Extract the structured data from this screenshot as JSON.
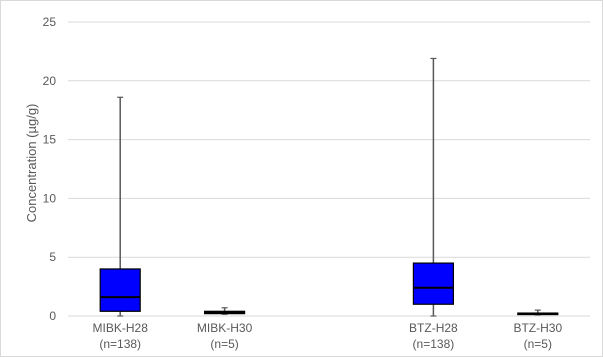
{
  "chart_data": {
    "type": "boxplot",
    "ylabel": "Concentration (µg/g)",
    "ylim": [
      0,
      25
    ],
    "yticks": [
      0,
      5,
      10,
      15,
      20,
      25
    ],
    "grid": true,
    "colors": {
      "box": "#0000ff",
      "whisker": "#595959",
      "grid": "#d9d9d9",
      "median": "#000000"
    },
    "categories": [
      {
        "name": "MIBK-H28",
        "n_label": "(n=138)",
        "min": 0.0,
        "q1": 0.4,
        "median": 1.6,
        "q3": 4.0,
        "max": 18.6
      },
      {
        "name": "MIBK-H30",
        "n_label": "(n=5)",
        "min": 0.15,
        "q1": 0.2,
        "median": 0.3,
        "q3": 0.4,
        "max": 0.7
      },
      {
        "name": "",
        "n_label": "",
        "empty": true
      },
      {
        "name": "BTZ-H28",
        "n_label": "(n=138)",
        "min": 0.0,
        "q1": 1.0,
        "median": 2.4,
        "q3": 4.5,
        "max": 21.9
      },
      {
        "name": "BTZ-H30",
        "n_label": "(n=5)",
        "min": 0.1,
        "q1": 0.15,
        "median": 0.2,
        "q3": 0.25,
        "max": 0.5
      }
    ]
  }
}
